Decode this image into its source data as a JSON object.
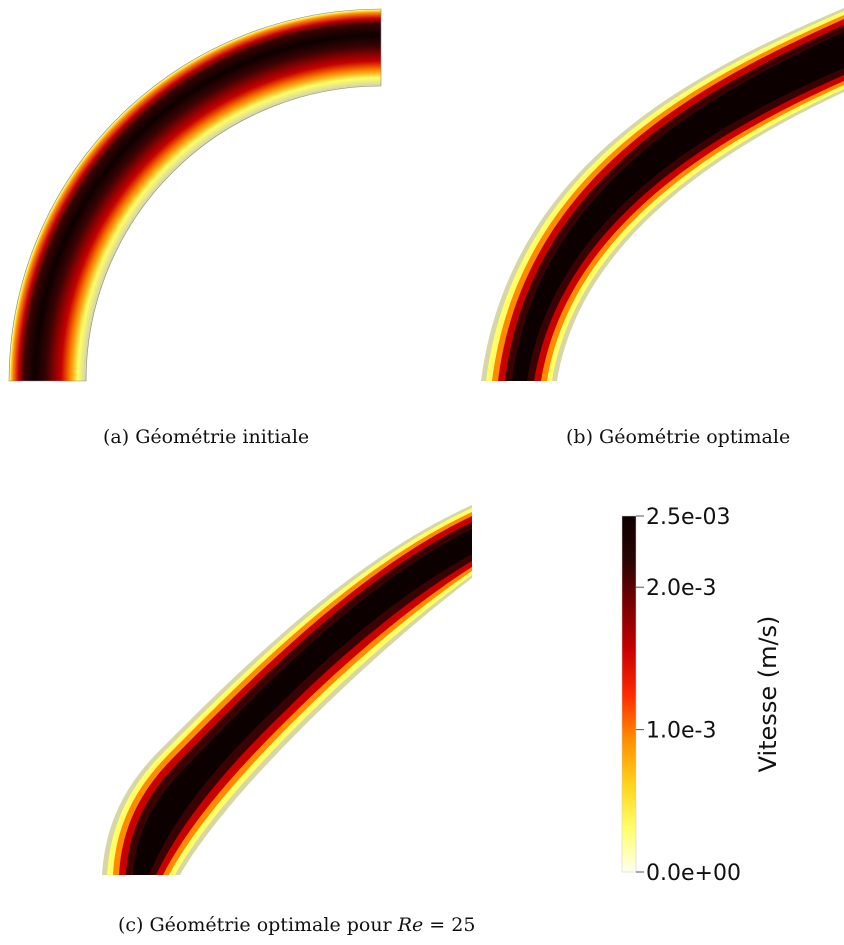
{
  "figure": {
    "captions": {
      "a": "(a) Géométrie initiale",
      "b": "(b) Géométrie optimale",
      "c_prefix": "(c) Géométrie optimale pour ",
      "c_math_var": "Re",
      "c_math_rest": " = 25"
    },
    "colorbar": {
      "title": "Vitesse (m/s)",
      "min": 0.0,
      "max": 0.0025,
      "ticks": [
        {
          "value": 0.0025,
          "label": "2.5e-03"
        },
        {
          "value": 0.002,
          "label": "2.0e-3"
        },
        {
          "value": 0.001,
          "label": "1.0e-3"
        },
        {
          "value": 0.0,
          "label": "0.0e+00"
        }
      ],
      "colormap": [
        "#fffff0",
        "#ffff66",
        "#ffd21a",
        "#ff8c00",
        "#ff2a00",
        "#c80000",
        "#7a0000",
        "#2a0404",
        "#0d0000"
      ]
    }
  }
}
